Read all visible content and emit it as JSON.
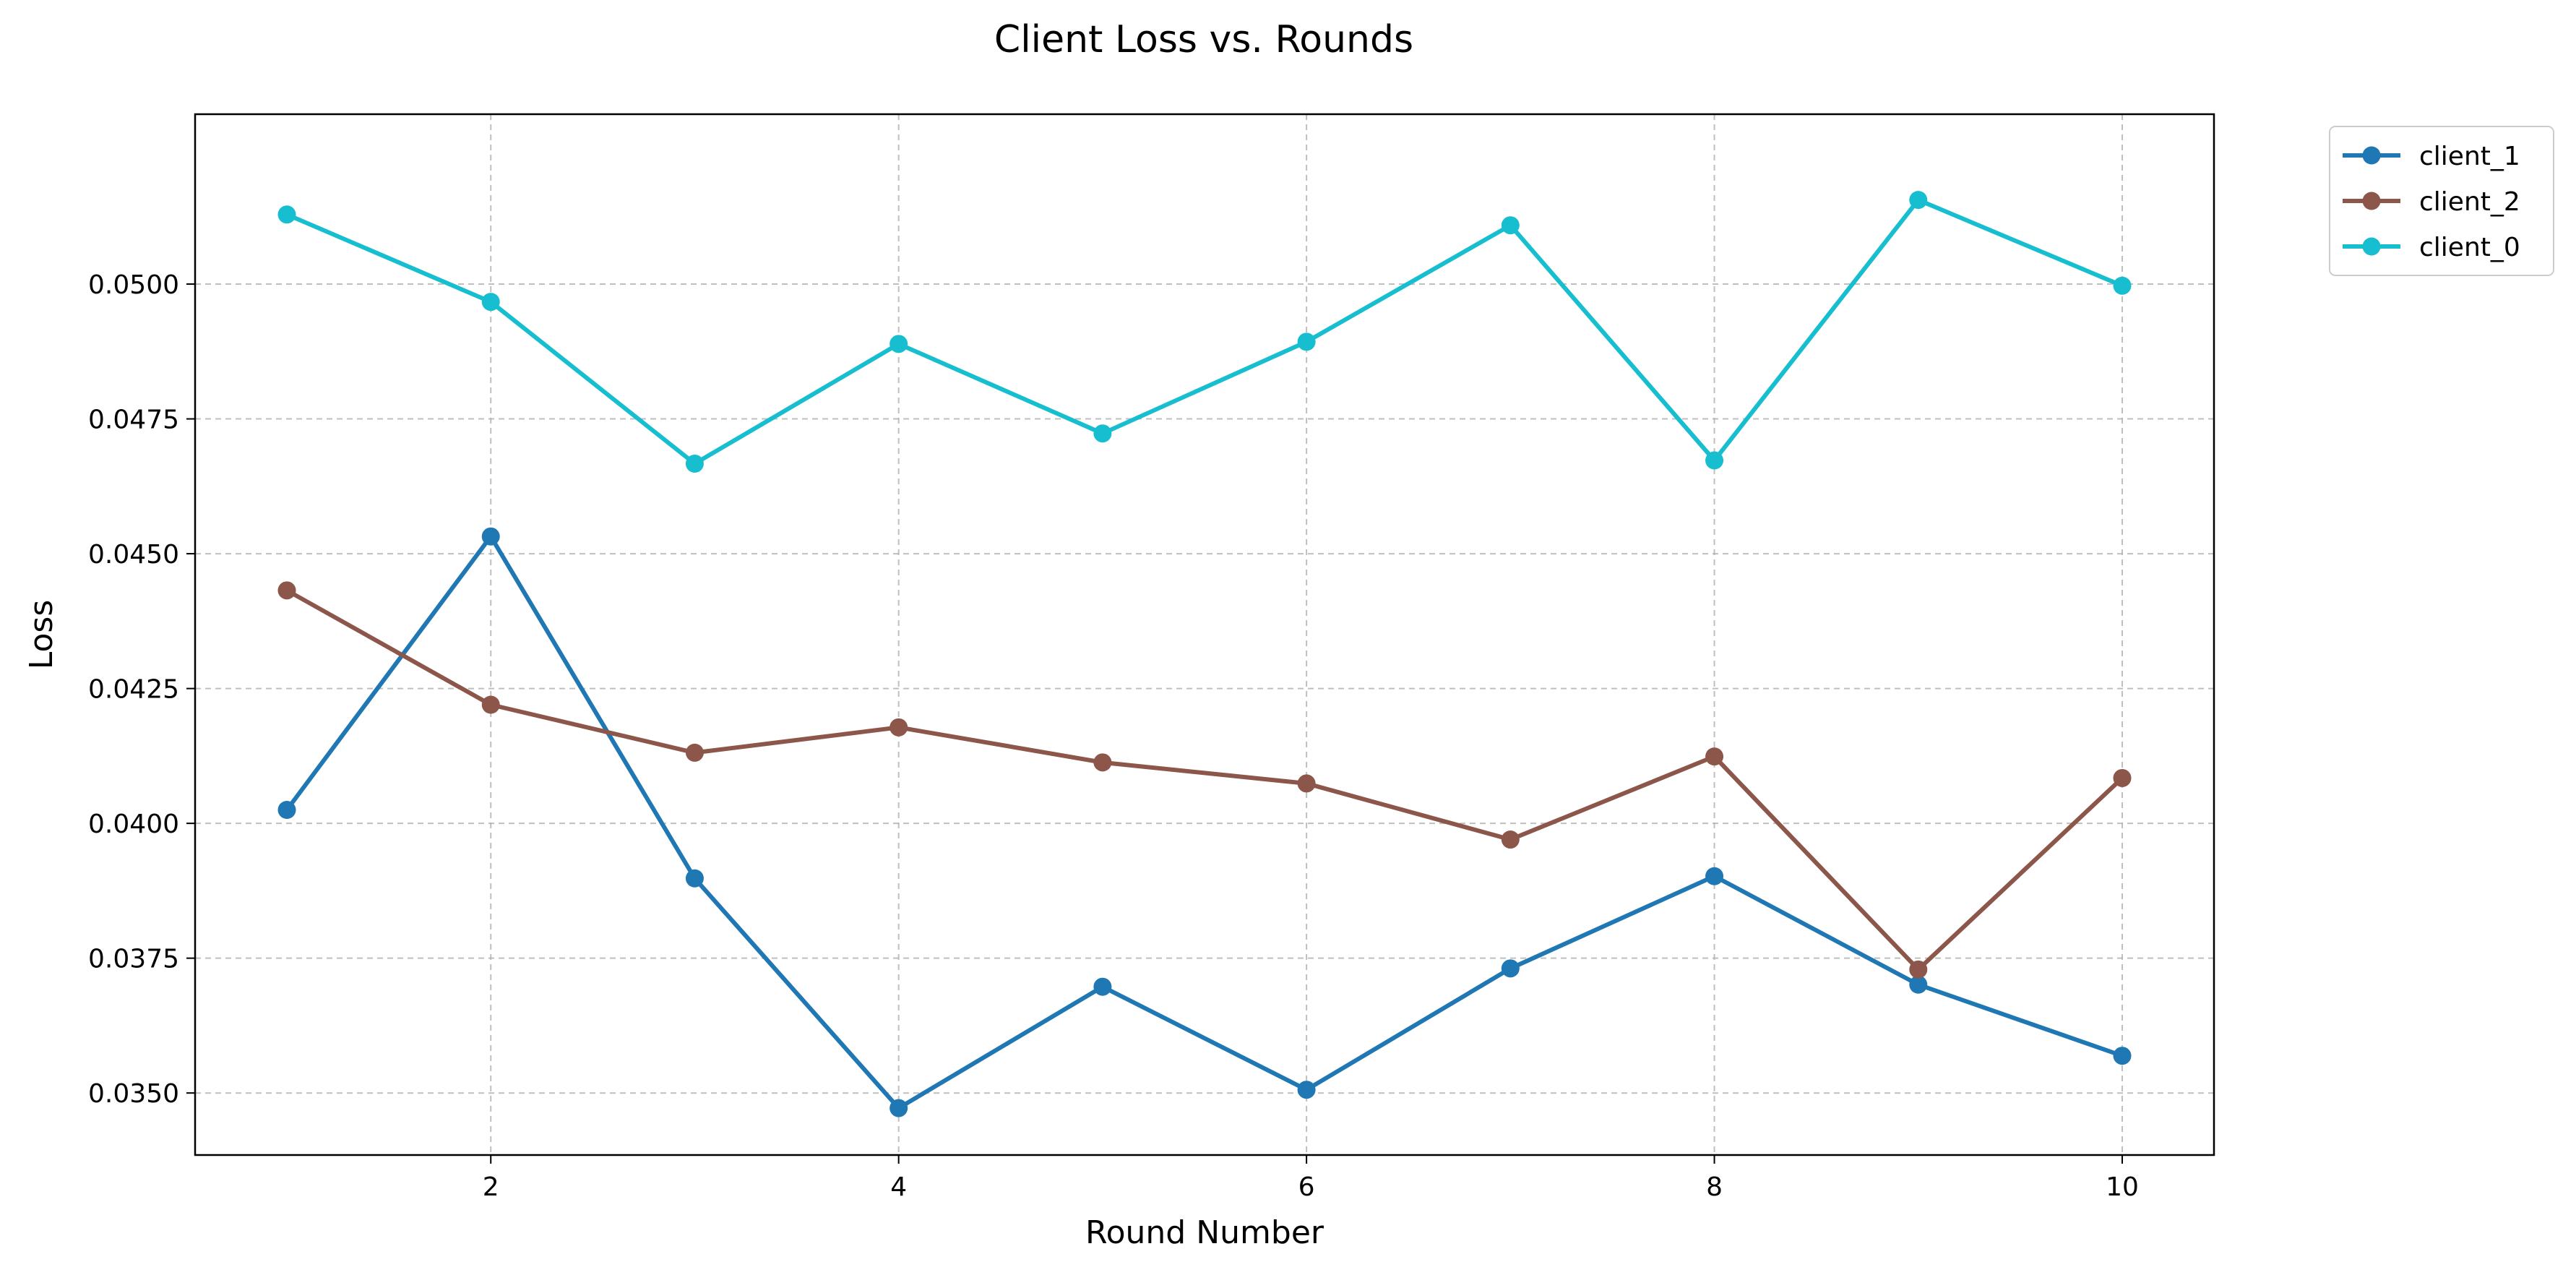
{
  "chart_data": {
    "type": "line",
    "title": "Client Loss vs. Rounds",
    "xlabel": "Round Number",
    "ylabel": "Loss",
    "x": [
      1,
      2,
      3,
      4,
      5,
      6,
      7,
      8,
      9,
      10
    ],
    "xlim": [
      0.55,
      10.45
    ],
    "ylim": [
      0.03385,
      0.05315
    ],
    "xticks": [
      2,
      4,
      6,
      8,
      10
    ],
    "xtick_labels": [
      "2",
      "4",
      "6",
      "8",
      "10"
    ],
    "yticks": [
      0.035,
      0.0375,
      0.04,
      0.0425,
      0.045,
      0.0475,
      0.05
    ],
    "ytick_labels": [
      "0.0350",
      "0.0375",
      "0.0400",
      "0.0425",
      "0.0450",
      "0.0475",
      "0.0500"
    ],
    "grid": true,
    "legend_position": "outside-top-right",
    "series": [
      {
        "name": "client_1",
        "color": "#1f77b4",
        "marker": "circle",
        "values": [
          0.04025,
          0.04532,
          0.03898,
          0.03472,
          0.03697,
          0.03506,
          0.03731,
          0.03902,
          0.03701,
          0.03569
        ]
      },
      {
        "name": "client_2",
        "color": "#8c564b",
        "marker": "circle",
        "values": [
          0.04432,
          0.0422,
          0.04131,
          0.04178,
          0.04113,
          0.04074,
          0.0397,
          0.04124,
          0.03729,
          0.04084
        ]
      },
      {
        "name": "client_0",
        "color": "#17becf",
        "marker": "circle",
        "values": [
          0.05129,
          0.04967,
          0.04667,
          0.04889,
          0.04723,
          0.04893,
          0.05109,
          0.04673,
          0.05156,
          0.04997
        ]
      }
    ]
  }
}
